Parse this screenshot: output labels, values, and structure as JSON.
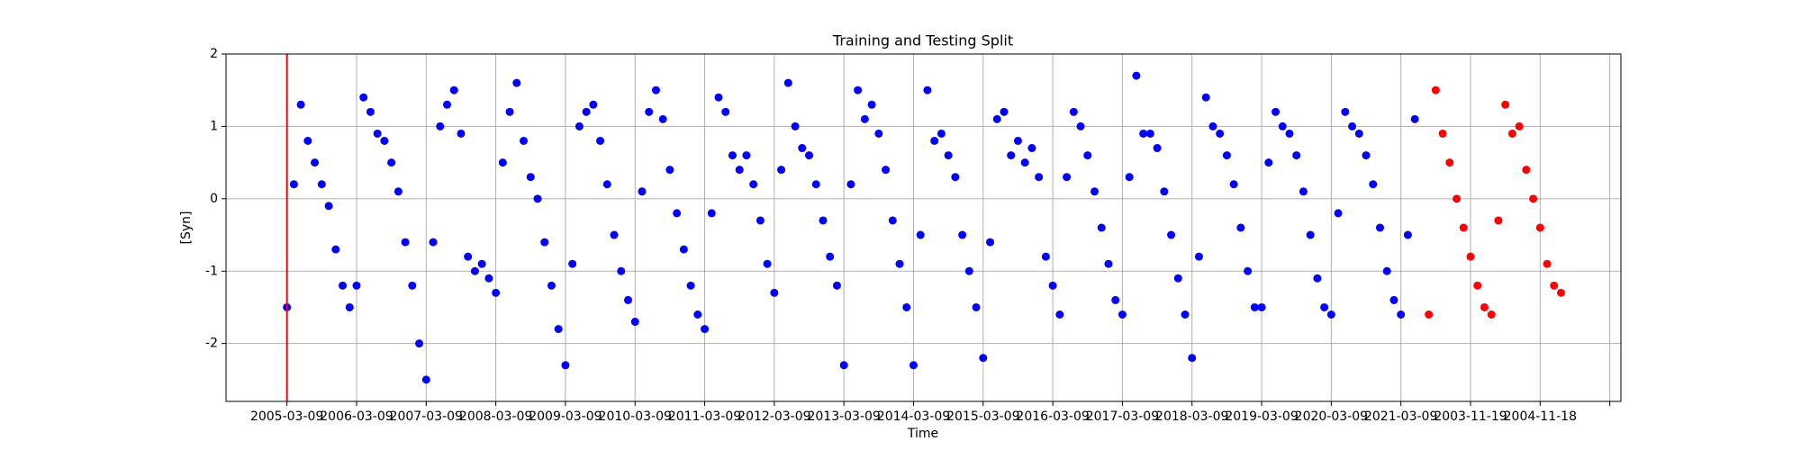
{
  "chart_data": {
    "type": "scatter",
    "title": "Training and Testing Split",
    "x_label": "Time",
    "y_label": "[Syn]",
    "xlim": [
      -0.875,
      19.16
    ],
    "ylim": [
      -2.8,
      2.0
    ],
    "xticks": [
      {
        "value": 0,
        "label": "2005-03-09"
      },
      {
        "value": 1,
        "label": "2006-03-09"
      },
      {
        "value": 2,
        "label": "2007-03-09"
      },
      {
        "value": 3,
        "label": "2008-03-09"
      },
      {
        "value": 4,
        "label": "2009-03-09"
      },
      {
        "value": 5,
        "label": "2010-03-09"
      },
      {
        "value": 6,
        "label": "2011-03-09"
      },
      {
        "value": 7,
        "label": "2012-03-09"
      },
      {
        "value": 8,
        "label": "2013-03-09"
      },
      {
        "value": 9,
        "label": "2014-03-09"
      },
      {
        "value": 10,
        "label": "2015-03-09"
      },
      {
        "value": 11,
        "label": "2016-03-09"
      },
      {
        "value": 12,
        "label": "2017-03-09"
      },
      {
        "value": 13,
        "label": "2018-03-09"
      },
      {
        "value": 14,
        "label": "2019-03-09"
      },
      {
        "value": 15,
        "label": "2020-03-09"
      },
      {
        "value": 16,
        "label": "2021-03-09"
      },
      {
        "value": 17,
        "label": "2003-11-19"
      },
      {
        "value": 18,
        "label": "2004-11-18"
      },
      {
        "value": 19,
        "label": null
      }
    ],
    "yticks": [
      -2,
      -1,
      0,
      1,
      2
    ],
    "grid": true,
    "vline": {
      "x": 0,
      "color": "red"
    },
    "series": [
      {
        "color": "blue",
        "x": [
          0,
          0.1,
          0.2,
          0.3,
          0.4,
          0.5,
          0.6,
          0.7,
          0.8,
          0.9,
          1,
          1.1,
          1.2,
          1.3,
          1.4,
          1.5,
          1.6,
          1.7,
          1.8,
          1.9,
          2,
          2.1,
          2.2,
          2.3,
          2.4,
          2.5,
          2.6,
          2.7,
          2.8,
          2.9,
          3,
          3.1,
          3.2,
          3.3,
          3.4,
          3.5,
          3.6,
          3.7,
          3.8,
          3.9,
          4,
          4.1,
          4.2,
          4.3,
          4.4,
          4.5,
          4.6,
          4.7,
          4.8,
          4.9,
          5,
          5.1,
          5.2,
          5.3,
          5.4,
          5.5,
          5.6,
          5.7,
          5.8,
          5.9,
          6,
          6.1,
          6.2,
          6.3,
          6.4,
          6.5,
          6.6,
          6.7,
          6.8,
          6.9,
          7,
          7.1,
          7.2,
          7.3,
          7.4,
          7.5,
          7.6,
          7.7,
          7.8,
          7.9,
          8,
          8.1,
          8.2,
          8.3,
          8.4,
          8.5,
          8.6,
          8.7,
          8.8,
          8.9,
          9,
          9.1,
          9.2,
          9.3,
          9.4,
          9.5,
          9.6,
          9.7,
          9.8,
          9.9,
          10,
          10.1,
          10.2,
          10.3,
          10.4,
          10.5,
          10.6,
          10.7,
          10.8,
          10.9,
          11,
          11.1,
          11.2,
          11.3,
          11.4,
          11.5,
          11.6,
          11.7,
          11.8,
          11.9,
          12,
          12.1,
          12.2,
          12.3,
          12.4,
          12.5,
          12.6,
          12.7,
          12.8,
          12.9,
          13,
          13.1,
          13.2,
          13.3,
          13.4,
          13.5,
          13.6,
          13.7,
          13.8,
          13.9,
          14,
          14.1,
          14.2,
          14.3,
          14.4,
          14.5,
          14.6,
          14.7,
          14.8,
          14.9,
          15,
          15.1,
          15.2,
          15.3,
          15.4,
          15.5,
          15.6,
          15.7,
          15.8,
          15.9,
          16,
          16.1,
          16.2
        ],
        "y": [
          -1.5,
          0.2,
          1.3,
          0.8,
          0.5,
          0.2,
          -0.1,
          -0.7,
          -1.2,
          -1.5,
          -1.2,
          1.4,
          1.2,
          0.9,
          0.8,
          0.5,
          0.1,
          -0.6,
          -1.2,
          -2.0,
          -2.5,
          -0.6,
          1.0,
          1.3,
          1.5,
          0.9,
          -0.8,
          -1.0,
          -0.9,
          -1.1,
          -1.3,
          0.5,
          1.2,
          1.6,
          0.8,
          0.3,
          0.0,
          -0.6,
          -1.2,
          -1.8,
          -2.3,
          -0.9,
          1.0,
          1.2,
          1.3,
          0.8,
          0.2,
          -0.5,
          -1.0,
          -1.4,
          -1.7,
          0.1,
          1.2,
          1.5,
          1.1,
          0.4,
          -0.2,
          -0.7,
          -1.2,
          -1.6,
          -1.8,
          -0.2,
          1.4,
          1.2,
          0.6,
          0.4,
          0.6,
          0.2,
          -0.3,
          -0.9,
          -1.3,
          0.4,
          1.6,
          1.0,
          0.7,
          0.6,
          0.2,
          -0.3,
          -0.8,
          -1.2,
          -2.3,
          0.2,
          1.5,
          1.1,
          1.3,
          0.9,
          0.4,
          -0.3,
          -0.9,
          -1.5,
          -2.3,
          -0.5,
          1.5,
          0.8,
          0.9,
          0.6,
          0.3,
          -0.5,
          -1.0,
          -1.5,
          -2.2,
          -0.6,
          1.1,
          1.2,
          0.6,
          0.8,
          0.5,
          0.7,
          0.3,
          -0.8,
          -1.2,
          -1.6,
          0.3,
          1.2,
          1.0,
          0.6,
          0.1,
          -0.4,
          -0.9,
          -1.4,
          -1.6,
          0.3,
          1.7,
          0.9,
          0.9,
          0.7,
          0.1,
          -0.5,
          -1.1,
          -1.6,
          -2.2,
          -0.8,
          1.4,
          1.0,
          0.9,
          0.6,
          0.2,
          -0.4,
          -1.0,
          -1.5,
          -1.5,
          0.5,
          1.2,
          1.0,
          0.9,
          0.6,
          0.1,
          -0.5,
          -1.1,
          -1.5,
          -1.6,
          -0.2,
          1.2,
          1.0,
          0.9,
          0.6,
          0.2,
          -0.4,
          -1.0,
          -1.4,
          -1.6,
          -0.5,
          1.1
        ]
      },
      {
        "color": "red",
        "x": [
          16.4,
          16.5,
          16.6,
          16.7,
          16.8,
          16.9,
          17,
          17.1,
          17.2,
          17.3,
          17.4,
          17.5,
          17.6,
          17.7,
          17.8,
          17.9,
          18,
          18.1,
          18.2,
          18.3
        ],
        "y": [
          -1.6,
          1.5,
          0.9,
          0.5,
          0.0,
          -0.4,
          -0.8,
          -1.2,
          -1.5,
          -1.6,
          -0.3,
          1.3,
          0.9,
          1.0,
          0.4,
          0.0,
          -0.4,
          -0.9,
          -1.2,
          -1.3
        ]
      }
    ]
  }
}
